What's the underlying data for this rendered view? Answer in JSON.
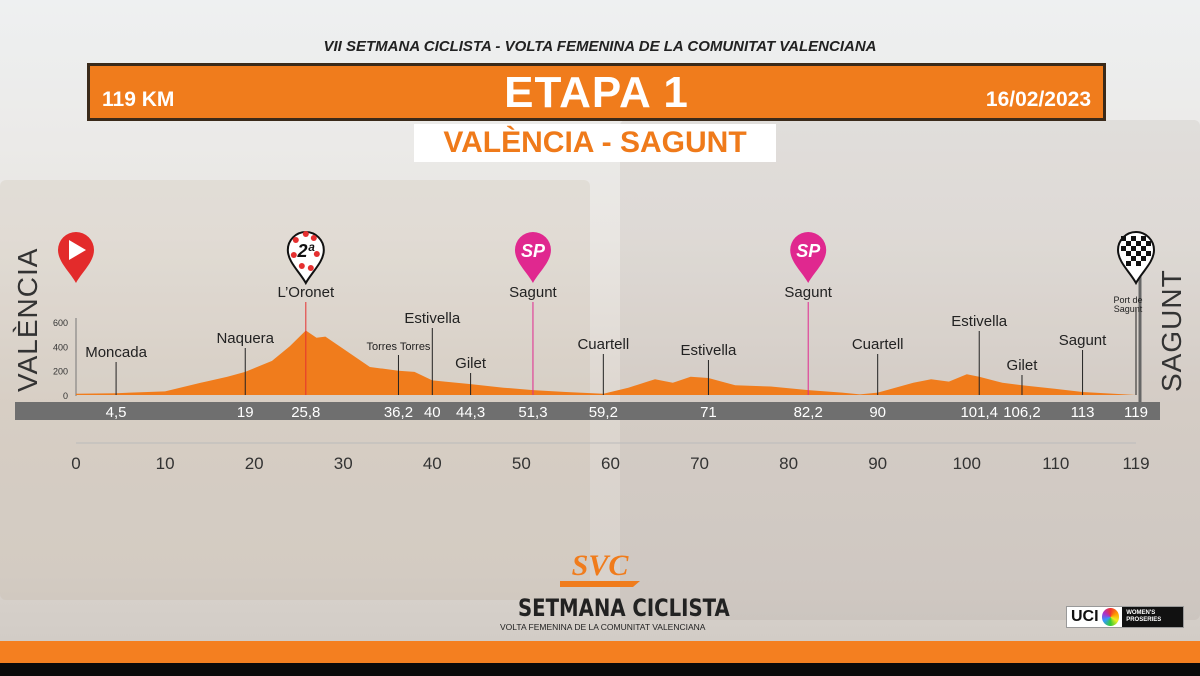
{
  "header": {
    "race": "VII SETMANA CICLISTA - VOLTA FEMENINA DE LA COMUNITAT VALENCIANA",
    "distance": "119 KM",
    "stage": "ETAPA 1",
    "date": "16/02/2023",
    "route": "VALÈNCIA - SAGUNT",
    "start_city": "VALÈNCIA",
    "finish_city": "SAGUNT"
  },
  "colors": {
    "accent": "#f07c1c",
    "profile": "#f07c1c",
    "sprint": "#e0288f",
    "kom": "#e53030",
    "bar": "#6f6f6f"
  },
  "chart_data": {
    "type": "area",
    "xlabel": "",
    "ylabel": "",
    "xlim": [
      0,
      119
    ],
    "ylim": [
      0,
      600
    ],
    "y_ticks": [
      0,
      200,
      400,
      600
    ],
    "x_ticks": [
      "0",
      "10",
      "20",
      "30",
      "40",
      "50",
      "60",
      "70",
      "80",
      "90",
      "100",
      "110",
      "119"
    ],
    "profile": {
      "km": [
        0,
        4.5,
        10,
        14,
        17,
        19,
        22,
        24,
        25.8,
        27,
        28,
        30,
        33,
        36.2,
        38,
        40,
        44.3,
        48,
        51.3,
        55,
        59.2,
        62,
        65,
        67,
        69,
        71,
        74,
        78,
        82.2,
        86,
        88,
        90,
        94,
        96,
        98,
        100,
        101.4,
        104,
        106.2,
        110,
        113,
        119
      ],
      "elevation": [
        10,
        15,
        30,
        100,
        150,
        190,
        280,
        400,
        530,
        470,
        480,
        380,
        230,
        200,
        190,
        120,
        90,
        60,
        40,
        25,
        10,
        60,
        130,
        100,
        150,
        140,
        80,
        70,
        40,
        20,
        5,
        20,
        100,
        130,
        110,
        170,
        150,
        100,
        80,
        50,
        25,
        0
      ]
    },
    "waypoints": [
      {
        "km": 4.5,
        "km_label": "4,5",
        "name": "Moncada"
      },
      {
        "km": 19,
        "km_label": "19",
        "name": "Naquera"
      },
      {
        "km": 25.8,
        "km_label": "25,8",
        "name": "L’Oronet",
        "marker": "kom-2nd-category-icon"
      },
      {
        "km": 36.2,
        "km_label": "36,2",
        "name": "Torres Torres"
      },
      {
        "km": 40,
        "km_label": "40",
        "name": "Estivella"
      },
      {
        "km": 44.3,
        "km_label": "44,3",
        "name": "Gilet"
      },
      {
        "km": 51.3,
        "km_label": "51,3",
        "name": "Sagunt",
        "marker": "sprint-icon"
      },
      {
        "km": 59.2,
        "km_label": "59,2",
        "name": "Cuartell"
      },
      {
        "km": 71,
        "km_label": "71",
        "name": "Estivella"
      },
      {
        "km": 82.2,
        "km_label": "82,2",
        "name": "Sagunt",
        "marker": "sprint-icon"
      },
      {
        "km": 90,
        "km_label": "90",
        "name": "Cuartell"
      },
      {
        "km": 101.4,
        "km_label": "101,4",
        "name": "Estivella"
      },
      {
        "km": 106.2,
        "km_label": "106,2",
        "name": "Gilet"
      },
      {
        "km": 113,
        "km_label": "113",
        "name": "Sagunt"
      },
      {
        "km": 119,
        "km_label": "119",
        "name": "Port de Sagunt",
        "marker": "finish-flag-icon"
      }
    ],
    "markers": {
      "kom_text": "2ª",
      "sprint_text": "SP"
    }
  },
  "footer": {
    "logo_main": "SETMANA CICLISTA",
    "logo_sub": "VOLTA FEMENINA DE LA COMUNITAT VALENCIANA",
    "logo_mark": "SVC",
    "uci": "UCI",
    "uci_series": "WOMEN'S PROSERIES"
  }
}
